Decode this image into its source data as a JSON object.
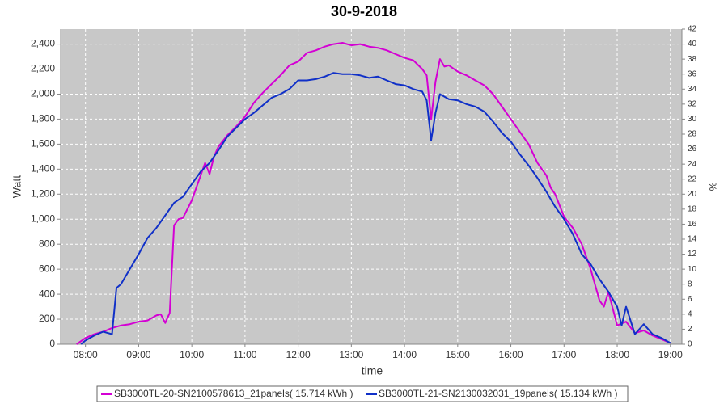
{
  "chart_data": {
    "type": "line",
    "title": "30-9-2018",
    "xlabel": "time",
    "ylabel": "Watt",
    "y2label": "%",
    "xlim": [
      452,
      1153
    ],
    "xticks": [
      {
        "value": 480,
        "label": "08:00"
      },
      {
        "value": 540,
        "label": "09:00"
      },
      {
        "value": 600,
        "label": "10:00"
      },
      {
        "value": 660,
        "label": "11:00"
      },
      {
        "value": 720,
        "label": "12:00"
      },
      {
        "value": 780,
        "label": "13:00"
      },
      {
        "value": 840,
        "label": "14:00"
      },
      {
        "value": 900,
        "label": "15:00"
      },
      {
        "value": 960,
        "label": "16:00"
      },
      {
        "value": 1020,
        "label": "17:00"
      },
      {
        "value": 1080,
        "label": "18:00"
      },
      {
        "value": 1140,
        "label": "19:00"
      }
    ],
    "ylim": [
      0,
      2520
    ],
    "yticks": [
      0,
      200,
      400,
      600,
      800,
      {
        "value": 1000,
        "label": "1,000"
      },
      {
        "value": 1200,
        "label": "1,200"
      },
      {
        "value": 1400,
        "label": "1,400"
      },
      {
        "value": 1600,
        "label": "1,600"
      },
      {
        "value": 1800,
        "label": "1,800"
      },
      {
        "value": 2000,
        "label": "2,000"
      },
      {
        "value": 2200,
        "label": "2,200"
      },
      {
        "value": 2400,
        "label": "2,400"
      }
    ],
    "y2lim": [
      0,
      42
    ],
    "y2ticks": [
      0,
      2,
      4,
      6,
      8,
      10,
      12,
      14,
      16,
      18,
      20,
      22,
      24,
      26,
      28,
      30,
      32,
      34,
      36,
      38,
      40,
      42
    ],
    "grid": true,
    "legend": "bottom",
    "series": [
      {
        "name": "SB3000TL-20-SN2100578613_21panels( 15.714 kWh )",
        "color": "#d400d4",
        "x": [
          470,
          480,
          490,
          500,
          510,
          520,
          530,
          540,
          550,
          560,
          565,
          570,
          575,
          580,
          585,
          590,
          600,
          610,
          615,
          620,
          625,
          630,
          640,
          650,
          660,
          670,
          680,
          690,
          700,
          710,
          720,
          730,
          740,
          750,
          760,
          770,
          780,
          790,
          800,
          810,
          820,
          830,
          840,
          850,
          860,
          865,
          870,
          875,
          880,
          885,
          890,
          900,
          910,
          920,
          930,
          940,
          950,
          960,
          970,
          980,
          990,
          1000,
          1005,
          1010,
          1020,
          1030,
          1040,
          1050,
          1060,
          1065,
          1070,
          1080,
          1090,
          1100,
          1110,
          1120,
          1130,
          1140
        ],
        "values": [
          0,
          50,
          80,
          100,
          130,
          150,
          160,
          180,
          190,
          230,
          240,
          170,
          250,
          950,
          1000,
          1010,
          1150,
          1350,
          1450,
          1360,
          1500,
          1580,
          1670,
          1740,
          1820,
          1930,
          2010,
          2080,
          2150,
          2230,
          2260,
          2330,
          2350,
          2380,
          2400,
          2410,
          2390,
          2400,
          2380,
          2370,
          2350,
          2320,
          2290,
          2270,
          2200,
          2150,
          1800,
          2100,
          2280,
          2220,
          2230,
          2180,
          2150,
          2110,
          2070,
          2000,
          1900,
          1800,
          1700,
          1600,
          1450,
          1350,
          1250,
          1200,
          1020,
          930,
          800,
          600,
          350,
          300,
          420,
          150,
          180,
          90,
          110,
          70,
          40,
          10
        ]
      },
      {
        "name": "SB3000TL-21-SN2130032031_19panels( 15.134 kWh )",
        "color": "#1030c8",
        "x": [
          475,
          480,
          490,
          500,
          510,
          515,
          520,
          530,
          540,
          550,
          560,
          570,
          580,
          590,
          600,
          610,
          620,
          630,
          640,
          650,
          660,
          670,
          680,
          690,
          700,
          710,
          720,
          730,
          740,
          750,
          760,
          770,
          780,
          790,
          800,
          810,
          820,
          830,
          840,
          850,
          860,
          865,
          870,
          875,
          880,
          890,
          900,
          910,
          920,
          930,
          940,
          950,
          960,
          970,
          980,
          990,
          1000,
          1010,
          1020,
          1030,
          1040,
          1050,
          1060,
          1070,
          1080,
          1085,
          1090,
          1100,
          1110,
          1120,
          1130,
          1140
        ],
        "values": [
          0,
          30,
          70,
          100,
          80,
          450,
          480,
          600,
          720,
          850,
          930,
          1030,
          1130,
          1180,
          1280,
          1380,
          1450,
          1550,
          1660,
          1730,
          1800,
          1850,
          1910,
          1970,
          2000,
          2040,
          2110,
          2110,
          2120,
          2140,
          2170,
          2160,
          2160,
          2150,
          2130,
          2140,
          2110,
          2080,
          2070,
          2040,
          2020,
          1950,
          1630,
          1850,
          2000,
          1960,
          1950,
          1920,
          1900,
          1860,
          1780,
          1690,
          1620,
          1520,
          1430,
          1330,
          1220,
          1100,
          1000,
          880,
          720,
          640,
          520,
          420,
          300,
          150,
          300,
          80,
          160,
          80,
          50,
          10
        ]
      }
    ]
  }
}
